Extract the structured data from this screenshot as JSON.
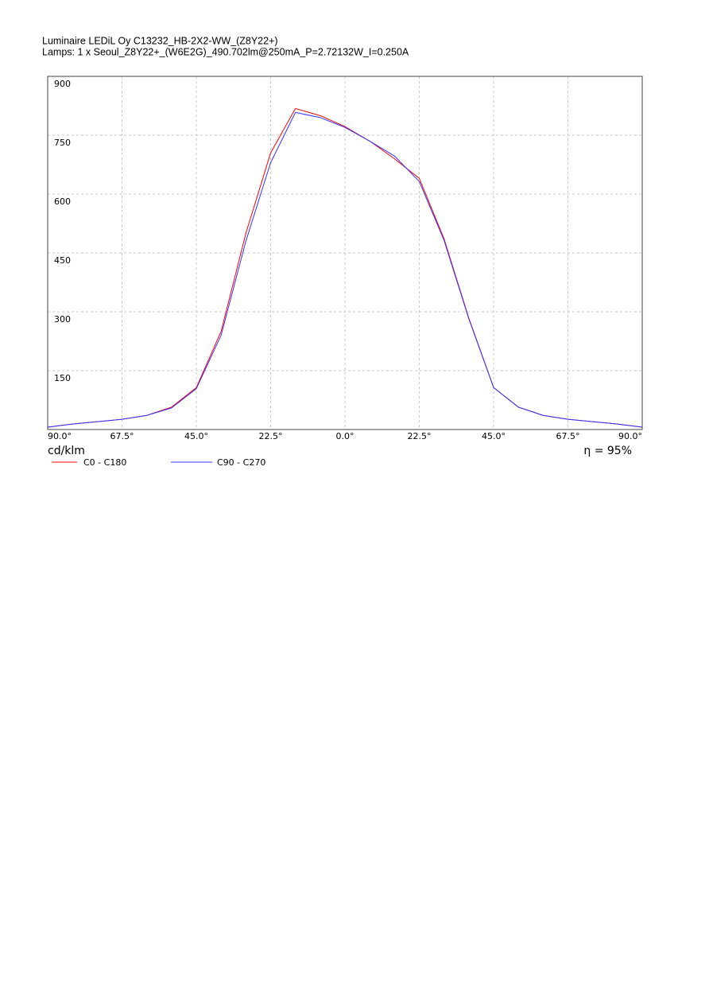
{
  "chart_data": {
    "type": "line",
    "title": "Luminaire LEDiL Oy C13232_HB-2X2-WW_(Z8Y22+)",
    "subtitle": "Lamps: 1 x Seoul_Z8Y22+_(W6E2G)_490.702lm@250mA_P=2.72132W_I=0.250A",
    "y_label": "cd/klm",
    "annotation": "η = 95%",
    "x": [
      -90,
      -82.5,
      -75,
      -67.5,
      -60,
      -52.5,
      -45,
      -37.5,
      -30,
      -22.5,
      -15,
      -7.5,
      0,
      7.5,
      15,
      22.5,
      30,
      37.5,
      45,
      52.5,
      60,
      67.5,
      75,
      82.5,
      90
    ],
    "series": [
      {
        "name": "C0 - C180",
        "color": "#ff0000",
        "values": [
          6,
          14,
          20,
          26,
          36,
          57,
          107,
          250,
          500,
          705,
          818,
          800,
          772,
          735,
          690,
          640,
          486,
          284,
          107,
          57,
          36,
          26,
          20,
          14,
          6
        ]
      },
      {
        "name": "C90 - C270",
        "color": "#3333ff",
        "values": [
          6,
          14,
          20,
          26,
          36,
          55,
          104,
          240,
          480,
          680,
          808,
          795,
          770,
          735,
          697,
          632,
          482,
          282,
          107,
          57,
          36,
          26,
          20,
          14,
          6
        ]
      }
    ],
    "xlim": [
      -90,
      90
    ],
    "xticks": [
      {
        "value": -90,
        "label": "90.0°"
      },
      {
        "value": -67.5,
        "label": "67.5°"
      },
      {
        "value": -45,
        "label": "45.0°"
      },
      {
        "value": -22.5,
        "label": "22.5°"
      },
      {
        "value": 0,
        "label": "0.0°"
      },
      {
        "value": 22.5,
        "label": "22.5°"
      },
      {
        "value": 45,
        "label": "45.0°"
      },
      {
        "value": 67.5,
        "label": "67.5°"
      },
      {
        "value": 90,
        "label": "90.0°"
      }
    ],
    "ylim": [
      0,
      900
    ],
    "yticks": [
      150,
      300,
      450,
      600,
      750,
      900
    ],
    "grid": true
  }
}
